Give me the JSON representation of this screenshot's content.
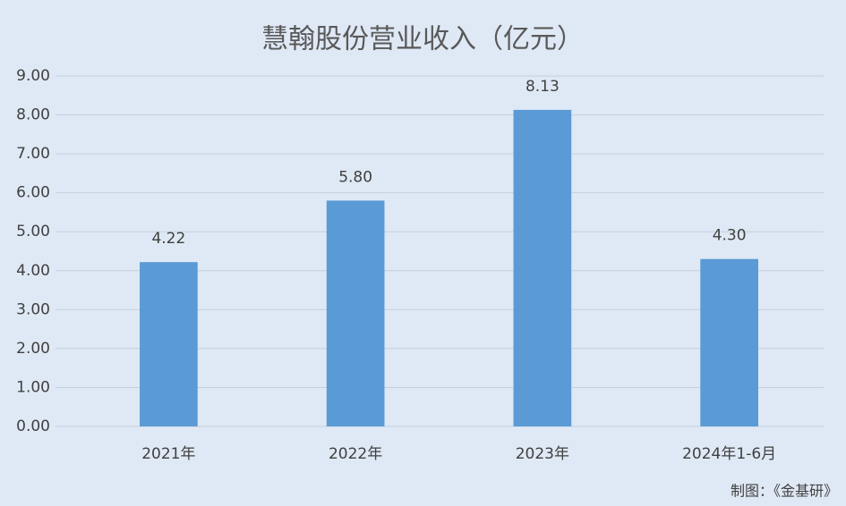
{
  "chart_data": {
    "type": "bar",
    "title": "慧翰股份营业收入（亿元）",
    "categories": [
      "2021年",
      "2022年",
      "2023年",
      "2024年1-6月"
    ],
    "values": [
      4.22,
      5.8,
      8.13,
      4.3
    ],
    "value_labels": [
      "4.22",
      "5.80",
      "8.13",
      "4.30"
    ],
    "color": "#5b9bd5",
    "ylim": [
      0,
      9
    ],
    "yticks": [
      {
        "value": 0,
        "label": "0.00"
      },
      {
        "value": 1,
        "label": "1.00"
      },
      {
        "value": 2,
        "label": "2.00"
      },
      {
        "value": 3,
        "label": "3.00"
      },
      {
        "value": 4,
        "label": "4.00"
      },
      {
        "value": 5,
        "label": "5.00"
      },
      {
        "value": 6,
        "label": "6.00"
      },
      {
        "value": 7,
        "label": "7.00"
      },
      {
        "value": 8,
        "label": "8.00"
      },
      {
        "value": 9,
        "label": "9.00"
      }
    ],
    "grid": true,
    "source": "制图：《金基研》"
  }
}
